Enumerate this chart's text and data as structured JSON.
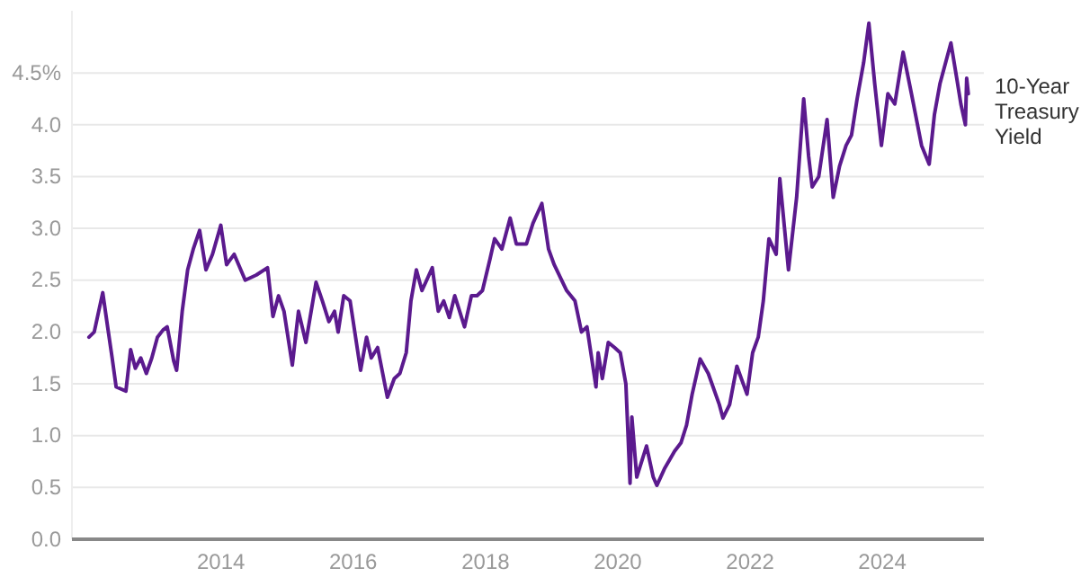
{
  "chart_data": {
    "type": "line",
    "x": [
      "2012-01-03",
      "2012-02-01",
      "2012-03-19",
      "2012-04-15",
      "2012-05-10",
      "2012-06-01",
      "2012-07-25",
      "2012-08-20",
      "2012-09-15",
      "2012-10-15",
      "2012-11-15",
      "2012-12-15",
      "2013-01-15",
      "2013-02-15",
      "2013-03-10",
      "2013-04-15",
      "2013-05-01",
      "2013-06-01",
      "2013-07-01",
      "2013-08-01",
      "2013-09-05",
      "2013-10-10",
      "2013-11-15",
      "2013-12-31",
      "2014-02-01",
      "2014-03-15",
      "2014-05-15",
      "2014-07-15",
      "2014-09-15",
      "2014-10-15",
      "2014-11-15",
      "2014-12-15",
      "2015-01-30",
      "2015-03-05",
      "2015-04-15",
      "2015-06-10",
      "2015-07-15",
      "2015-08-20",
      "2015-09-20",
      "2015-10-10",
      "2015-11-10",
      "2015-12-15",
      "2016-02-11",
      "2016-03-15",
      "2016-04-10",
      "2016-05-15",
      "2016-07-08",
      "2016-08-15",
      "2016-09-15",
      "2016-10-20",
      "2016-11-15",
      "2016-12-15",
      "2017-01-15",
      "2017-03-13",
      "2017-04-15",
      "2017-05-15",
      "2017-06-15",
      "2017-07-15",
      "2017-09-07",
      "2017-10-15",
      "2017-11-15",
      "2017-12-15",
      "2018-01-25",
      "2018-02-20",
      "2018-04-01",
      "2018-05-17",
      "2018-06-20",
      "2018-08-15",
      "2018-09-20",
      "2018-11-08",
      "2018-12-15",
      "2019-01-15",
      "2019-03-25",
      "2019-05-10",
      "2019-06-15",
      "2019-07-15",
      "2019-09-03",
      "2019-09-15",
      "2019-10-08",
      "2019-11-10",
      "2019-12-15",
      "2020-01-15",
      "2020-02-15",
      "2020-03-09",
      "2020-03-19",
      "2020-04-15",
      "2020-06-08",
      "2020-07-15",
      "2020-08-04",
      "2020-09-15",
      "2020-11-10",
      "2020-12-15",
      "2021-01-15",
      "2021-02-15",
      "2021-03-31",
      "2021-05-15",
      "2021-07-15",
      "2021-08-04",
      "2021-09-10",
      "2021-10-20",
      "2021-12-15",
      "2022-01-15",
      "2022-02-15",
      "2022-03-15",
      "2022-04-15",
      "2022-05-25",
      "2022-06-14",
      "2022-08-01",
      "2022-09-15",
      "2022-10-24",
      "2022-11-20",
      "2022-12-10",
      "2023-01-15",
      "2023-03-02",
      "2023-04-05",
      "2023-05-10",
      "2023-06-15",
      "2023-07-15",
      "2023-08-15",
      "2023-09-20",
      "2023-10-19",
      "2023-11-20",
      "2023-12-27",
      "2024-02-01",
      "2024-03-10",
      "2024-04-25",
      "2024-06-10",
      "2024-08-05",
      "2024-09-16",
      "2024-10-15",
      "2024-11-15",
      "2025-01-14",
      "2025-02-15",
      "2025-03-10",
      "2025-04-04",
      "2025-04-11",
      "2025-04-20"
    ],
    "series": [
      {
        "name": "10-Year Treasury Yield",
        "color": "#5b1a8e",
        "values": [
          1.95,
          2.0,
          2.38,
          2.05,
          1.75,
          1.47,
          1.43,
          1.83,
          1.65,
          1.75,
          1.6,
          1.75,
          1.95,
          2.02,
          2.05,
          1.72,
          1.63,
          2.2,
          2.6,
          2.8,
          2.98,
          2.6,
          2.75,
          3.03,
          2.65,
          2.75,
          2.5,
          2.55,
          2.62,
          2.15,
          2.35,
          2.2,
          1.68,
          2.2,
          1.9,
          2.48,
          2.3,
          2.1,
          2.2,
          2.0,
          2.35,
          2.3,
          1.63,
          1.95,
          1.75,
          1.85,
          1.37,
          1.55,
          1.6,
          1.8,
          2.3,
          2.6,
          2.4,
          2.62,
          2.2,
          2.3,
          2.14,
          2.35,
          2.05,
          2.35,
          2.35,
          2.4,
          2.7,
          2.9,
          2.8,
          3.1,
          2.85,
          2.85,
          3.05,
          3.24,
          2.8,
          2.65,
          2.4,
          2.3,
          2.0,
          2.05,
          1.47,
          1.8,
          1.55,
          1.9,
          1.85,
          1.8,
          1.5,
          0.54,
          1.18,
          0.6,
          0.9,
          0.6,
          0.52,
          0.68,
          0.85,
          0.93,
          1.1,
          1.4,
          1.74,
          1.6,
          1.3,
          1.17,
          1.3,
          1.67,
          1.4,
          1.8,
          1.95,
          2.3,
          2.9,
          2.75,
          3.48,
          2.6,
          3.3,
          4.25,
          3.7,
          3.4,
          3.5,
          4.05,
          3.3,
          3.6,
          3.8,
          3.9,
          4.25,
          4.6,
          4.98,
          4.4,
          3.8,
          4.3,
          4.2,
          4.7,
          4.3,
          3.8,
          3.62,
          4.1,
          4.4,
          4.79,
          4.45,
          4.2,
          4.0,
          4.45,
          4.3
        ]
      }
    ],
    "xlim": [
      "2011-10-01",
      "2025-07-15"
    ],
    "xticks": [
      {
        "value": "2014-01-01",
        "label": "2014"
      },
      {
        "value": "2016-01-01",
        "label": "2016"
      },
      {
        "value": "2018-01-01",
        "label": "2018"
      },
      {
        "value": "2020-01-01",
        "label": "2020"
      },
      {
        "value": "2022-01-01",
        "label": "2022"
      },
      {
        "value": "2024-01-01",
        "label": "2024"
      }
    ],
    "ylim": [
      0,
      5.1
    ],
    "yticks": [
      {
        "value": 0,
        "label": "0.0"
      },
      {
        "value": 0.5,
        "label": "0.5"
      },
      {
        "value": 1,
        "label": "1.0"
      },
      {
        "value": 1.5,
        "label": "1.5"
      },
      {
        "value": 2,
        "label": "2.0"
      },
      {
        "value": 2.5,
        "label": "2.5"
      },
      {
        "value": 3,
        "label": "3.0"
      },
      {
        "value": 3.5,
        "label": "3.5"
      },
      {
        "value": 4,
        "label": "4.0"
      },
      {
        "value": 4.5,
        "label": "4.5%"
      }
    ],
    "grid": "y",
    "legend": false,
    "line_style": "solid",
    "marker": "none"
  }
}
